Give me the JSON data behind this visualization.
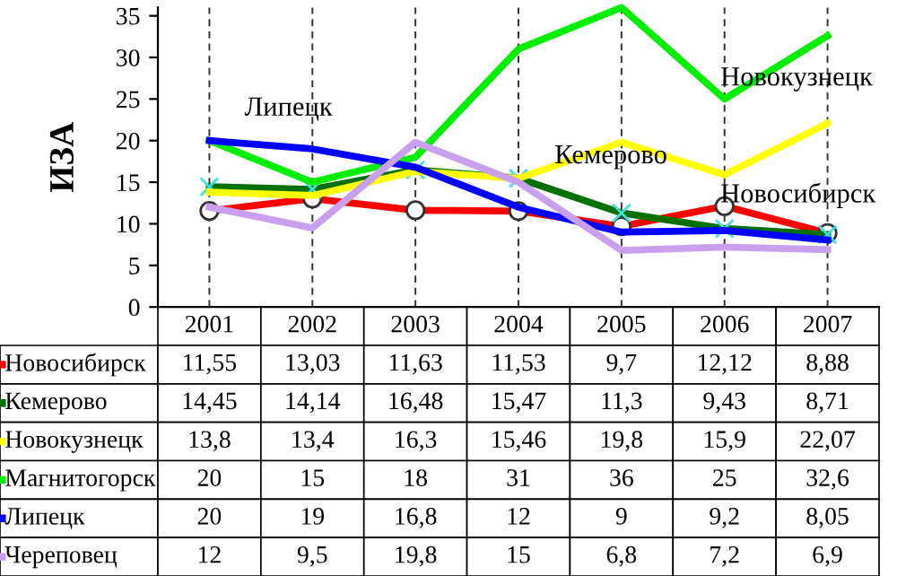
{
  "chart_data": {
    "type": "line",
    "ylabel": "ИЗА",
    "categories": [
      "2001",
      "2002",
      "2003",
      "2004",
      "2005",
      "2006",
      "2007"
    ],
    "ylim": [
      0,
      36
    ],
    "yticks": [
      0,
      5,
      10,
      15,
      20,
      25,
      30,
      35
    ],
    "grid": "x",
    "tick_labels": "y",
    "legend": "left",
    "data_labels": true,
    "series": [
      {
        "name": "Новосибирск",
        "color": "#ff0000",
        "marker": "circle",
        "values": [
          11.55,
          13.03,
          11.63,
          11.53,
          9.7,
          12.12,
          8.88
        ],
        "value_labels": [
          "11,55",
          "13,03",
          "11,63",
          "11,53",
          "9,7",
          "12,12",
          "8,88"
        ]
      },
      {
        "name": "Кемерово",
        "color": "#007000",
        "marker": "cross",
        "values": [
          14.45,
          14.14,
          16.48,
          15.47,
          11.3,
          9.43,
          8.71
        ],
        "value_labels": [
          "14,45",
          "14,14",
          "16,48",
          "15,47",
          "11,3",
          "9,43",
          "8,71"
        ]
      },
      {
        "name": "Новокузнецк",
        "color": "#ffff00",
        "marker": "none",
        "values": [
          13.8,
          13.4,
          16.3,
          15.46,
          19.8,
          15.9,
          22.07
        ],
        "value_labels": [
          "13,8",
          "13,4",
          "16,3",
          "15,46",
          "19,8",
          "15,9",
          "22,07"
        ]
      },
      {
        "name": "Магнитогорск",
        "color": "#00ee00",
        "marker": "none",
        "values": [
          20,
          15,
          18,
          31,
          36,
          25,
          32.6
        ],
        "value_labels": [
          "20",
          "15",
          "18",
          "31",
          "36",
          "25",
          "32,6"
        ]
      },
      {
        "name": "Липецк",
        "color": "#0000ff",
        "marker": "none",
        "values": [
          20,
          19,
          16.8,
          12,
          9,
          9.2,
          8.05
        ],
        "value_labels": [
          "20",
          "19",
          "16,8",
          "12",
          "9",
          "9,2",
          "8,05"
        ]
      },
      {
        "name": "Череповец",
        "color": "#c8a0ee",
        "marker": "none",
        "values": [
          12,
          9.5,
          19.8,
          15,
          6.8,
          7.2,
          6.9
        ],
        "value_labels": [
          "12",
          "9,5",
          "19,8",
          "15",
          "6,8",
          "7,2",
          "6,9"
        ]
      }
    ],
    "annotations": [
      "Липецк",
      "Новокузнецк",
      "Кемерово",
      "Новосибирск"
    ]
  }
}
